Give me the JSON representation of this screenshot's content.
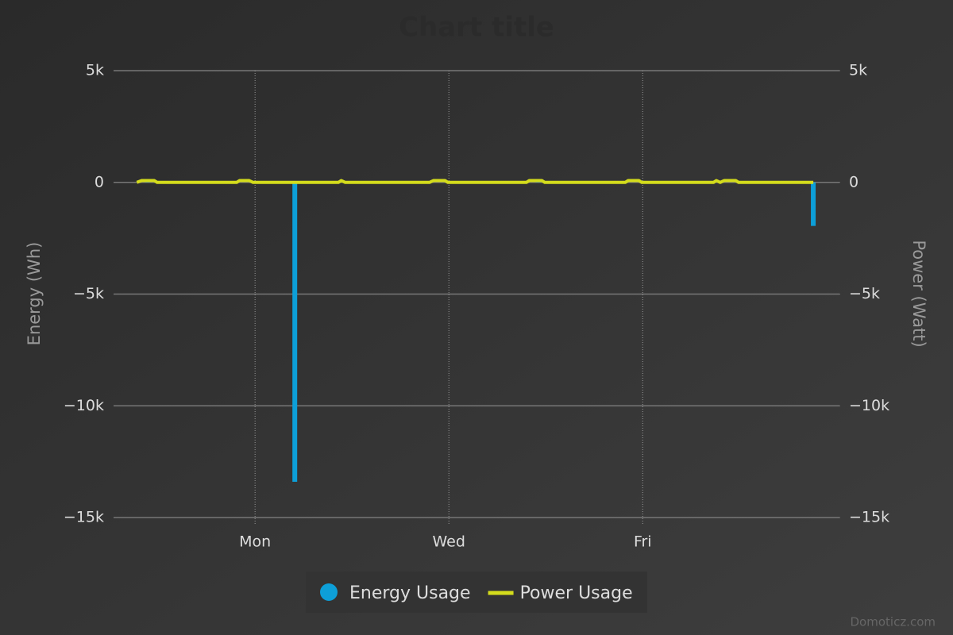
{
  "chart_data": {
    "type": "combo",
    "title": "Chart title",
    "y_label": "Energy (Wh)",
    "y2_label": "Power (Watt)",
    "xlim": [
      -0.46,
      7.03
    ],
    "xticks": [
      {
        "value": 1,
        "label": "Mon"
      },
      {
        "value": 3,
        "label": "Wed"
      },
      {
        "value": 5,
        "label": "Fri"
      }
    ],
    "ylim": [
      -15000,
      5000
    ],
    "yticks": [
      {
        "value": -15000,
        "label": "−15k"
      },
      {
        "value": -10000,
        "label": "−10k"
      },
      {
        "value": -5000,
        "label": "−5k"
      },
      0,
      {
        "value": 5000,
        "label": "5k"
      }
    ],
    "y2lim": [
      -15000,
      5000
    ],
    "y2ticks": [
      {
        "value": -15000,
        "label": "−15k"
      },
      {
        "value": -10000,
        "label": "−10k"
      },
      {
        "value": -5000,
        "label": "−5k"
      },
      0,
      {
        "value": 5000,
        "label": "5k"
      }
    ],
    "grid": true,
    "series": [
      {
        "name": "Energy Usage",
        "type": "bar",
        "color": "#0d9fd8",
        "x": [
          -0.11,
          1.41,
          3.92,
          6.76
        ],
        "values": [
          100,
          -13400,
          100,
          -1950
        ]
      },
      {
        "name": "Power Usage",
        "type": "line",
        "color": "#d4dc1c",
        "axis": "y2",
        "x": [
          -0.22,
          -0.17,
          -0.04,
          -0.01,
          0.81,
          0.84,
          0.94,
          0.98,
          1.86,
          1.89,
          1.93,
          2.8,
          2.84,
          2.96,
          2.99,
          3.8,
          3.83,
          3.96,
          3.99,
          4.82,
          4.85,
          4.96,
          4.99,
          5.73,
          5.76,
          5.8,
          5.84,
          5.96,
          5.99,
          6.76
        ],
        "values": [
          0,
          80,
          80,
          0,
          0,
          80,
          80,
          0,
          0,
          80,
          0,
          0,
          80,
          80,
          0,
          0,
          80,
          80,
          0,
          0,
          80,
          80,
          0,
          0,
          80,
          0,
          80,
          80,
          0,
          0
        ]
      }
    ],
    "credit": "Domoticz.com"
  }
}
